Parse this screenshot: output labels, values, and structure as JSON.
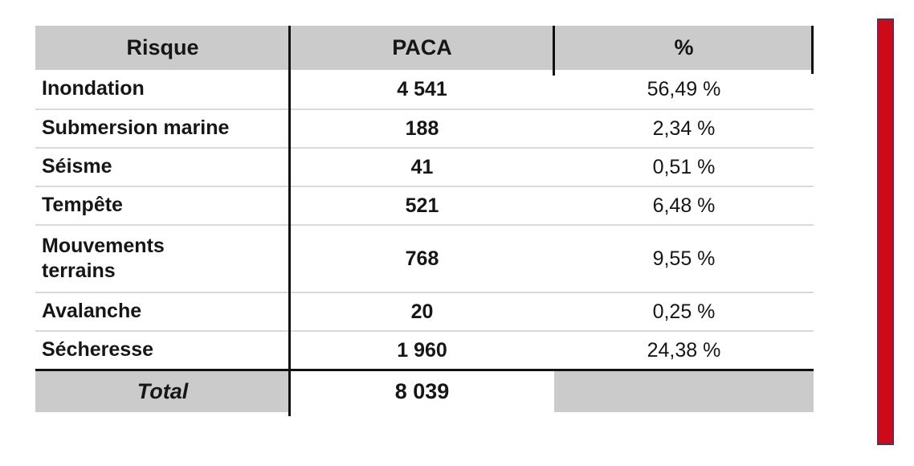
{
  "table": {
    "header": {
      "risque": "Risque",
      "paca": "PACA",
      "pct": "%"
    },
    "rows": [
      {
        "risque": "Inondation",
        "paca": "4 541",
        "pct": "56,49 %"
      },
      {
        "risque": "Submersion marine",
        "paca": "188",
        "pct": "2,34 %"
      },
      {
        "risque": "Séisme",
        "paca": "41",
        "pct": "0,51 %"
      },
      {
        "risque": "Tempête",
        "paca": "521",
        "pct": "6,48 %"
      },
      {
        "risque": "Mouvements terrains",
        "paca": "768",
        "pct": "9,55 %"
      },
      {
        "risque": "Avalanche",
        "paca": "20",
        "pct": "0,25 %"
      },
      {
        "risque": "Sécheresse",
        "paca": "1 960",
        "pct": "24,38 %"
      }
    ],
    "total": {
      "label": "Total",
      "paca": "8 039",
      "pct": ""
    }
  },
  "colors": {
    "header_bg": "#cbcbcb",
    "text": "#161616",
    "divider": "#111111",
    "separator": "#d9d9d9",
    "accent_red": "#cb0c18",
    "bar_border": "#5b2e5c"
  }
}
